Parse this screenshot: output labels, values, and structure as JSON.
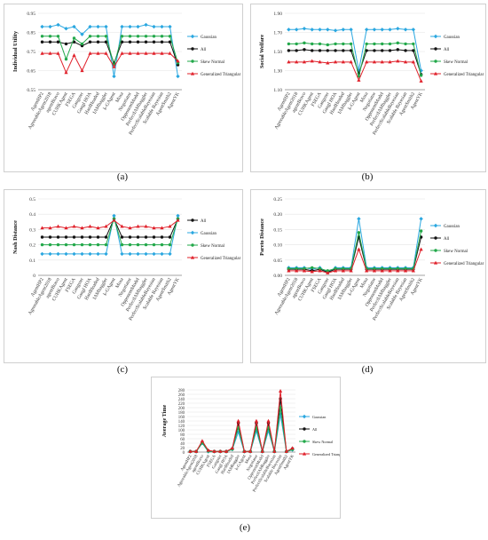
{
  "categories": [
    "AgentHP2",
    "AgreeableAgent2018",
    "agentBravo",
    "CUHKAgent",
    "FSEGA",
    "Gangster",
    "Gangl HOA",
    "HardHeaded",
    "IAMhaggler",
    "k-GAgent",
    "Mosa",
    "Negotiator",
    "OpponentModel",
    "PerfectIAMhaggler",
    "PerfectScalableBayesian",
    "Scalable Bayesian",
    "AgentSmith2",
    "AgentYK"
  ],
  "colors": {
    "Gaussian": "#2aa7e0",
    "All": "#111111",
    "Skew Normal": "#22a84a",
    "Generalized Triangular": "#e0202a"
  },
  "labels": {
    "a": "(a)",
    "b": "(b)",
    "c": "(c)",
    "d": "(d)",
    "e": "(e)"
  },
  "chart_data": [
    {
      "id": "a",
      "type": "line",
      "ylabel": "Individual Utility",
      "ylim": [
        0.55,
        0.95
      ],
      "yticks": [
        0.55,
        0.65,
        0.75,
        0.85,
        0.95
      ],
      "legend": "right",
      "series": [
        {
          "name": "Gaussian",
          "values": [
            0.88,
            0.88,
            0.89,
            0.87,
            0.88,
            0.84,
            0.88,
            0.88,
            0.88,
            0.62,
            0.88,
            0.88,
            0.88,
            0.89,
            0.88,
            0.88,
            0.88,
            0.62
          ]
        },
        {
          "name": "All",
          "values": [
            0.8,
            0.8,
            0.8,
            0.79,
            0.8,
            0.78,
            0.8,
            0.8,
            0.8,
            0.69,
            0.8,
            0.8,
            0.8,
            0.8,
            0.8,
            0.8,
            0.8,
            0.68
          ]
        },
        {
          "name": "Skew Normal",
          "values": [
            0.83,
            0.83,
            0.83,
            0.71,
            0.82,
            0.79,
            0.83,
            0.83,
            0.83,
            0.68,
            0.83,
            0.83,
            0.83,
            0.83,
            0.83,
            0.83,
            0.83,
            0.69
          ]
        },
        {
          "name": "Generalized Triangular",
          "values": [
            0.74,
            0.74,
            0.74,
            0.64,
            0.73,
            0.65,
            0.74,
            0.74,
            0.74,
            0.67,
            0.74,
            0.74,
            0.74,
            0.74,
            0.74,
            0.74,
            0.74,
            0.7
          ]
        }
      ]
    },
    {
      "id": "b",
      "type": "line",
      "ylabel": "Social Welfare",
      "ylim": [
        1.1,
        1.9
      ],
      "yticks": [
        1.1,
        1.3,
        1.5,
        1.7,
        1.9
      ],
      "legend": "right",
      "series": [
        {
          "name": "Gaussian",
          "values": [
            1.73,
            1.73,
            1.74,
            1.73,
            1.73,
            1.73,
            1.72,
            1.73,
            1.73,
            1.3,
            1.73,
            1.73,
            1.73,
            1.73,
            1.74,
            1.73,
            1.73,
            1.3
          ]
        },
        {
          "name": "All",
          "values": [
            1.51,
            1.51,
            1.52,
            1.51,
            1.51,
            1.51,
            1.51,
            1.51,
            1.51,
            1.27,
            1.51,
            1.51,
            1.51,
            1.51,
            1.52,
            1.51,
            1.51,
            1.26
          ]
        },
        {
          "name": "Skew Normal",
          "values": [
            1.58,
            1.58,
            1.59,
            1.58,
            1.58,
            1.57,
            1.58,
            1.58,
            1.58,
            1.24,
            1.58,
            1.58,
            1.58,
            1.58,
            1.59,
            1.58,
            1.58,
            1.25
          ]
        },
        {
          "name": "Generalized Triangular",
          "values": [
            1.39,
            1.39,
            1.39,
            1.4,
            1.39,
            1.38,
            1.39,
            1.39,
            1.39,
            1.2,
            1.39,
            1.39,
            1.39,
            1.39,
            1.4,
            1.39,
            1.39,
            1.19
          ]
        }
      ]
    },
    {
      "id": "c",
      "type": "line",
      "ylabel": "Nash Distance",
      "ylim": [
        0,
        0.5
      ],
      "yticks": [
        0,
        0.1,
        0.2,
        0.3,
        0.4,
        0.5
      ],
      "legend": "right",
      "series": [
        {
          "name": "All",
          "values": [
            0.25,
            0.25,
            0.25,
            0.25,
            0.25,
            0.25,
            0.25,
            0.25,
            0.25,
            0.37,
            0.25,
            0.25,
            0.25,
            0.25,
            0.25,
            0.25,
            0.25,
            0.37
          ]
        },
        {
          "name": "Gaussian",
          "values": [
            0.14,
            0.14,
            0.14,
            0.14,
            0.14,
            0.14,
            0.14,
            0.14,
            0.14,
            0.39,
            0.14,
            0.14,
            0.14,
            0.14,
            0.14,
            0.14,
            0.14,
            0.39
          ]
        },
        {
          "name": "Skew Normal",
          "values": [
            0.2,
            0.2,
            0.2,
            0.2,
            0.2,
            0.2,
            0.2,
            0.2,
            0.2,
            0.37,
            0.2,
            0.2,
            0.2,
            0.2,
            0.2,
            0.2,
            0.2,
            0.37
          ]
        },
        {
          "name": "Generalized Triangular",
          "values": [
            0.31,
            0.31,
            0.32,
            0.31,
            0.32,
            0.31,
            0.32,
            0.31,
            0.32,
            0.36,
            0.32,
            0.31,
            0.32,
            0.32,
            0.31,
            0.31,
            0.32,
            0.36
          ]
        }
      ]
    },
    {
      "id": "d",
      "type": "line",
      "ylabel": "Pareto Distance",
      "ylim": [
        0,
        0.25
      ],
      "yticks": [
        0,
        0.05,
        0.1,
        0.15,
        0.2,
        0.25
      ],
      "legend": "right",
      "series": [
        {
          "name": "Gaussian",
          "values": [
            0.025,
            0.025,
            0.025,
            0.02,
            0.025,
            0.01,
            0.025,
            0.025,
            0.025,
            0.185,
            0.025,
            0.025,
            0.025,
            0.025,
            0.025,
            0.025,
            0.025,
            0.185
          ]
        },
        {
          "name": "All",
          "values": [
            0.02,
            0.02,
            0.02,
            0.015,
            0.02,
            0.01,
            0.02,
            0.02,
            0.02,
            0.125,
            0.02,
            0.02,
            0.02,
            0.02,
            0.02,
            0.02,
            0.02,
            0.125
          ]
        },
        {
          "name": "Skew Normal",
          "values": [
            0.022,
            0.022,
            0.022,
            0.025,
            0.022,
            0.015,
            0.022,
            0.022,
            0.022,
            0.14,
            0.022,
            0.022,
            0.022,
            0.022,
            0.022,
            0.022,
            0.022,
            0.145
          ]
        },
        {
          "name": "Generalized Triangular",
          "values": [
            0.015,
            0.015,
            0.015,
            0.012,
            0.015,
            0.008,
            0.015,
            0.015,
            0.015,
            0.085,
            0.015,
            0.015,
            0.015,
            0.015,
            0.015,
            0.015,
            0.015,
            0.085
          ]
        }
      ]
    },
    {
      "id": "e",
      "type": "line",
      "ylabel": "Average Time",
      "ylim": [
        0,
        280
      ],
      "yticks": [
        0,
        20,
        40,
        60,
        80,
        100,
        120,
        140,
        160,
        180,
        200,
        220,
        240,
        260,
        280
      ],
      "legend": "right",
      "series": [
        {
          "name": "Gaussian",
          "values": [
            2,
            2,
            40,
            2,
            2,
            2,
            2,
            12,
            90,
            2,
            2,
            95,
            2,
            95,
            2,
            170,
            2,
            10
          ]
        },
        {
          "name": "All",
          "values": [
            3,
            3,
            45,
            6,
            3,
            3,
            3,
            15,
            130,
            3,
            3,
            130,
            3,
            130,
            3,
            240,
            3,
            15
          ]
        },
        {
          "name": "Skew Normal",
          "values": [
            2,
            2,
            42,
            4,
            2,
            2,
            2,
            13,
            110,
            2,
            2,
            110,
            2,
            110,
            2,
            200,
            2,
            12
          ]
        },
        {
          "name": "Generalized Triangular",
          "values": [
            3,
            3,
            50,
            8,
            3,
            3,
            3,
            18,
            140,
            3,
            3,
            140,
            3,
            140,
            3,
            275,
            3,
            18
          ]
        }
      ]
    }
  ]
}
